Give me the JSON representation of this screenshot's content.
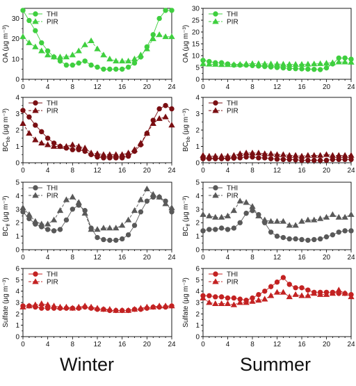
{
  "seasons": {
    "left": "Winter",
    "right": "Summer"
  },
  "colors": {
    "OA": "#3fcf3f",
    "BC": "#7a0e12",
    "BCff": "#595959",
    "Sulfate": "#c32222"
  },
  "chart_data": [
    {
      "type": "line",
      "panel": "winter-OA",
      "ylabel": "OA (µg m⁻³)",
      "legend": [
        "THI",
        "PIR"
      ],
      "xlim": [
        0,
        24
      ],
      "ylim": [
        0,
        35
      ],
      "xticks": [
        0,
        4,
        8,
        12,
        16,
        20,
        24
      ],
      "yticks": [
        0,
        10,
        20,
        30
      ],
      "series": [
        {
          "name": "THI",
          "marker": "circle",
          "x": [
            0,
            1,
            2,
            3,
            4,
            5,
            6,
            7,
            8,
            9,
            10,
            11,
            12,
            13,
            14,
            15,
            16,
            17,
            18,
            19,
            20,
            21,
            22,
            23,
            24
          ],
          "values": [
            34,
            29,
            24,
            18,
            14,
            11,
            9,
            7,
            7,
            8,
            9,
            7,
            6,
            5,
            5,
            5,
            5,
            6,
            8,
            11,
            16,
            22,
            30,
            34,
            34
          ]
        },
        {
          "name": "PIR",
          "marker": "triangle",
          "x": [
            0,
            1,
            2,
            3,
            4,
            5,
            6,
            7,
            8,
            9,
            10,
            11,
            12,
            13,
            14,
            15,
            16,
            17,
            18,
            19,
            20,
            21,
            22,
            23,
            24
          ],
          "values": [
            21,
            18,
            16,
            14,
            12,
            11,
            11,
            11,
            12,
            14,
            17,
            19,
            15,
            12,
            10,
            9,
            9,
            9,
            10,
            12,
            15,
            20,
            22,
            21,
            21
          ]
        }
      ]
    },
    {
      "type": "line",
      "panel": "summer-OA",
      "ylabel": "OA (µg m⁻³)",
      "legend": [
        "THI",
        "PIR"
      ],
      "xlim": [
        0,
        24
      ],
      "ylim": [
        0,
        30
      ],
      "xticks": [
        0,
        4,
        8,
        12,
        16,
        20,
        24
      ],
      "yticks": [
        0,
        5,
        10,
        15,
        20,
        25,
        30
      ],
      "series": [
        {
          "name": "THI",
          "marker": "circle",
          "x": [
            0,
            1,
            2,
            3,
            4,
            5,
            6,
            7,
            8,
            9,
            10,
            11,
            12,
            13,
            14,
            15,
            16,
            17,
            18,
            19,
            20,
            21,
            22,
            23,
            24
          ],
          "values": [
            8,
            7.5,
            7,
            7,
            6.5,
            6,
            6,
            6,
            5.8,
            5.6,
            5.4,
            5.2,
            5,
            4.8,
            4.6,
            4.5,
            4.4,
            4.3,
            4.2,
            4.1,
            4.8,
            6.5,
            9,
            9,
            8.5
          ]
        },
        {
          "name": "PIR",
          "marker": "triangle",
          "x": [
            0,
            1,
            2,
            3,
            4,
            5,
            6,
            7,
            8,
            9,
            10,
            11,
            12,
            13,
            14,
            15,
            16,
            17,
            18,
            19,
            20,
            21,
            22,
            23,
            24
          ],
          "values": [
            6.5,
            6.4,
            6.3,
            6.2,
            6.2,
            6.2,
            6.3,
            6.5,
            6.6,
            6.6,
            6.5,
            6.5,
            6.4,
            6.4,
            6.3,
            6.3,
            6.3,
            6.4,
            6.5,
            6.6,
            6.8,
            7,
            7.3,
            7.3,
            7.2
          ]
        }
      ]
    },
    {
      "type": "line",
      "panel": "winter-BCbb",
      "ylabel": "BC",
      "ylabel_sub": "bb",
      "ylabel_unit": " (µg m⁻³)",
      "legend": [
        "THI",
        "PIR"
      ],
      "xlim": [
        0,
        24
      ],
      "ylim": [
        0,
        4
      ],
      "xticks": [
        0,
        4,
        8,
        12,
        16,
        20,
        24
      ],
      "yticks": [
        0,
        1,
        2,
        3,
        4
      ],
      "series": [
        {
          "name": "THI",
          "marker": "circle",
          "x": [
            0,
            1,
            2,
            3,
            4,
            5,
            6,
            7,
            8,
            9,
            10,
            11,
            12,
            13,
            14,
            15,
            16,
            17,
            18,
            19,
            20,
            21,
            22,
            23,
            24
          ],
          "values": [
            3.2,
            2.8,
            2.3,
            1.9,
            1.5,
            1.2,
            1,
            0.9,
            0.8,
            0.8,
            0.7,
            0.5,
            0.35,
            0.3,
            0.3,
            0.3,
            0.3,
            0.4,
            0.7,
            1.1,
            1.8,
            2.6,
            3.3,
            3.5,
            3.3
          ]
        },
        {
          "name": "PIR",
          "marker": "triangle",
          "x": [
            0,
            1,
            2,
            3,
            4,
            5,
            6,
            7,
            8,
            9,
            10,
            11,
            12,
            13,
            14,
            15,
            16,
            17,
            18,
            19,
            20,
            21,
            22,
            23,
            24
          ],
          "values": [
            2.4,
            1.8,
            1.4,
            1.2,
            1.1,
            1,
            1,
            1,
            1.1,
            1,
            0.9,
            0.6,
            0.55,
            0.5,
            0.5,
            0.5,
            0.5,
            0.6,
            0.8,
            1.2,
            1.8,
            2.4,
            2.7,
            2.8,
            2.3
          ]
        }
      ]
    },
    {
      "type": "line",
      "panel": "summer-BCbb",
      "ylabel": "BC",
      "ylabel_sub": "bb",
      "ylabel_unit": " (µg m⁻³)",
      "legend": [
        "THI",
        "PIR"
      ],
      "xlim": [
        0,
        24
      ],
      "ylim": [
        0,
        4
      ],
      "xticks": [
        0,
        4,
        8,
        12,
        16,
        20,
        24
      ],
      "yticks": [
        0,
        1,
        2,
        3,
        4
      ],
      "series": [
        {
          "name": "THI",
          "marker": "circle",
          "x": [
            0,
            1,
            2,
            3,
            4,
            5,
            6,
            7,
            8,
            9,
            10,
            11,
            12,
            13,
            14,
            15,
            16,
            17,
            18,
            19,
            20,
            21,
            22,
            23,
            24
          ],
          "values": [
            0.25,
            0.25,
            0.25,
            0.25,
            0.25,
            0.28,
            0.3,
            0.35,
            0.35,
            0.3,
            0.3,
            0.25,
            0.22,
            0.2,
            0.2,
            0.18,
            0.15,
            0.15,
            0.15,
            0.15,
            0.15,
            0.2,
            0.2,
            0.2,
            0.2
          ]
        },
        {
          "name": "PIR",
          "marker": "triangle",
          "x": [
            0,
            1,
            2,
            3,
            4,
            5,
            6,
            7,
            8,
            9,
            10,
            11,
            12,
            13,
            14,
            15,
            16,
            17,
            18,
            19,
            20,
            21,
            22,
            23,
            24
          ],
          "values": [
            0.45,
            0.4,
            0.4,
            0.4,
            0.4,
            0.45,
            0.55,
            0.6,
            0.6,
            0.6,
            0.55,
            0.55,
            0.5,
            0.5,
            0.45,
            0.45,
            0.4,
            0.45,
            0.45,
            0.45,
            0.5,
            0.45,
            0.45,
            0.45,
            0.45
          ]
        }
      ]
    },
    {
      "type": "line",
      "panel": "winter-BCff",
      "ylabel": "BC",
      "ylabel_sub": "ff",
      "ylabel_unit": " (µg m⁻³)",
      "legend": [
        "THI",
        "PIR"
      ],
      "xlim": [
        0,
        24
      ],
      "ylim": [
        0,
        5
      ],
      "xticks": [
        0,
        4,
        8,
        12,
        16,
        20,
        24
      ],
      "yticks": [
        0,
        1,
        2,
        3,
        4,
        5
      ],
      "series": [
        {
          "name": "THI",
          "marker": "circle",
          "x": [
            0,
            1,
            2,
            3,
            4,
            5,
            6,
            7,
            8,
            9,
            10,
            11,
            12,
            13,
            14,
            15,
            16,
            17,
            18,
            19,
            20,
            21,
            22,
            23,
            24
          ],
          "values": [
            2.8,
            2.3,
            1.9,
            1.7,
            1.5,
            1.4,
            1.5,
            2.2,
            3,
            3.3,
            2.9,
            1.6,
            0.9,
            0.75,
            0.7,
            0.7,
            0.8,
            1.1,
            1.8,
            2.8,
            3.6,
            3.9,
            3.9,
            3.6,
            2.8
          ]
        },
        {
          "name": "PIR",
          "marker": "triangle",
          "x": [
            0,
            1,
            2,
            3,
            4,
            5,
            6,
            7,
            8,
            9,
            10,
            11,
            12,
            13,
            14,
            15,
            16,
            17,
            18,
            19,
            20,
            21,
            22,
            23,
            24
          ],
          "values": [
            3.1,
            2.6,
            2.1,
            1.9,
            1.9,
            2.2,
            2.9,
            3.7,
            3.9,
            3.5,
            2.7,
            1.5,
            1.5,
            1.6,
            1.6,
            1.6,
            1.8,
            2.2,
            2.9,
            3.7,
            4.5,
            4.1,
            3.9,
            3.4,
            3.1
          ]
        }
      ]
    },
    {
      "type": "line",
      "panel": "summer-BCff",
      "ylabel": "BC",
      "ylabel_sub": "ff",
      "ylabel_unit": " (µg m⁻³)",
      "legend": [
        "THI",
        "PIR"
      ],
      "xlim": [
        0,
        24
      ],
      "ylim": [
        0,
        5
      ],
      "xticks": [
        0,
        4,
        8,
        12,
        16,
        20,
        24
      ],
      "yticks": [
        0,
        1,
        2,
        3,
        4,
        5
      ],
      "series": [
        {
          "name": "THI",
          "marker": "circle",
          "x": [
            0,
            1,
            2,
            3,
            4,
            5,
            6,
            7,
            8,
            9,
            10,
            11,
            12,
            13,
            14,
            15,
            16,
            17,
            18,
            19,
            20,
            21,
            22,
            23,
            24
          ],
          "values": [
            1.4,
            1.5,
            1.5,
            1.6,
            1.5,
            1.6,
            2,
            2.7,
            2.9,
            2.6,
            2,
            1.3,
            1,
            0.9,
            0.8,
            0.8,
            0.75,
            0.7,
            0.75,
            0.8,
            0.95,
            1.1,
            1.3,
            1.4,
            1.4
          ]
        },
        {
          "name": "PIR",
          "marker": "triangle",
          "x": [
            0,
            1,
            2,
            3,
            4,
            5,
            6,
            7,
            8,
            9,
            10,
            11,
            12,
            13,
            14,
            15,
            16,
            17,
            18,
            19,
            20,
            21,
            22,
            23,
            24
          ],
          "values": [
            2.6,
            2.5,
            2.4,
            2.4,
            2.5,
            2.9,
            3.6,
            3.5,
            3.2,
            2.5,
            2.2,
            2.1,
            2.1,
            2.1,
            1.8,
            1.8,
            2.1,
            2.2,
            2.2,
            2.3,
            2.4,
            2.6,
            2.4,
            2.4,
            2.6
          ]
        }
      ]
    },
    {
      "type": "line",
      "panel": "winter-Sulfate",
      "ylabel": "Sulfate (µg m⁻³)",
      "legend": [
        "THI",
        "PIR"
      ],
      "xlim": [
        0,
        24
      ],
      "ylim": [
        0,
        6
      ],
      "xticks": [
        0,
        4,
        8,
        12,
        16,
        20,
        24
      ],
      "yticks": [
        0,
        1,
        2,
        3,
        4,
        5,
        6
      ],
      "series": [
        {
          "name": "THI",
          "marker": "circle",
          "x": [
            0,
            1,
            2,
            3,
            4,
            5,
            6,
            7,
            8,
            9,
            10,
            11,
            12,
            13,
            14,
            15,
            16,
            17,
            18,
            19,
            20,
            21,
            22,
            23,
            24
          ],
          "values": [
            2.7,
            2.7,
            2.6,
            2.5,
            2.5,
            2.5,
            2.5,
            2.5,
            2.5,
            2.5,
            2.6,
            2.5,
            2.4,
            2.4,
            2.3,
            2.3,
            2.3,
            2.3,
            2.4,
            2.4,
            2.5,
            2.6,
            2.6,
            2.6,
            2.7
          ]
        },
        {
          "name": "PIR",
          "marker": "triangle",
          "x": [
            0,
            1,
            2,
            3,
            4,
            5,
            6,
            7,
            8,
            9,
            10,
            11,
            12,
            13,
            14,
            15,
            16,
            17,
            18,
            19,
            20,
            21,
            22,
            23,
            24
          ],
          "values": [
            2.6,
            2.7,
            2.8,
            2.9,
            2.8,
            2.7,
            2.6,
            2.6,
            2.5,
            2.6,
            2.7,
            2.6,
            2.5,
            2.4,
            2.4,
            2.3,
            2.3,
            2.3,
            2.4,
            2.5,
            2.6,
            2.6,
            2.7,
            2.7,
            2.7
          ]
        }
      ]
    },
    {
      "type": "line",
      "panel": "summer-Sulfate",
      "ylabel": "Sulfate (µg m⁻³)",
      "legend": [
        "THI",
        "PIR"
      ],
      "xlim": [
        0,
        24
      ],
      "ylim": [
        0,
        6
      ],
      "xticks": [
        0,
        4,
        8,
        12,
        16,
        20,
        24
      ],
      "yticks": [
        0,
        1,
        2,
        3,
        4,
        5,
        6
      ],
      "series": [
        {
          "name": "THI",
          "marker": "circle",
          "x": [
            0,
            1,
            2,
            3,
            4,
            5,
            6,
            7,
            8,
            9,
            10,
            11,
            12,
            13,
            14,
            15,
            16,
            17,
            18,
            19,
            20,
            21,
            22,
            23,
            24
          ],
          "values": [
            3.6,
            3.6,
            3.5,
            3.5,
            3.4,
            3.4,
            3.3,
            3.2,
            3.4,
            3.7,
            4,
            4.4,
            4.8,
            5.2,
            4.6,
            4.3,
            4.3,
            4.1,
            3.9,
            3.9,
            3.9,
            3.9,
            3.8,
            3.8,
            3.7
          ]
        },
        {
          "name": "PIR",
          "marker": "triangle",
          "x": [
            0,
            1,
            2,
            3,
            4,
            5,
            6,
            7,
            8,
            9,
            10,
            11,
            12,
            13,
            14,
            15,
            16,
            17,
            18,
            19,
            20,
            21,
            22,
            23,
            24
          ],
          "values": [
            3.4,
            3,
            2.9,
            2.9,
            2.9,
            2.8,
            3,
            3,
            3.1,
            3.2,
            3.3,
            3.6,
            3.9,
            3.9,
            3.5,
            3.7,
            3.6,
            3.6,
            3.8,
            3.7,
            3.7,
            3.8,
            4.1,
            3.8,
            3.5
          ]
        }
      ]
    }
  ]
}
